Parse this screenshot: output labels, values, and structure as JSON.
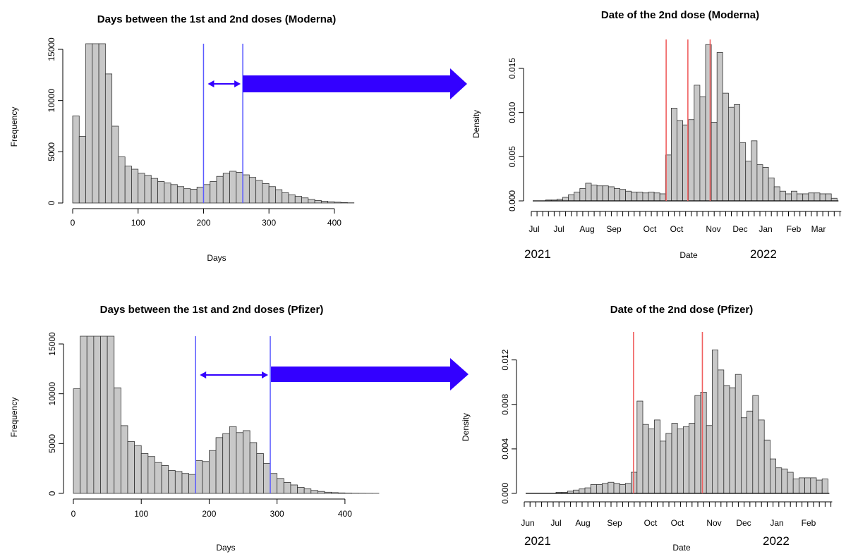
{
  "figure": {
    "arrow_color": "#3300ff",
    "bar_fill": "#c8c8c8",
    "blue_line_color": "#5a5aff",
    "red_line_color": "#f06060"
  },
  "chart_data": [
    {
      "type": "bar",
      "title": "Days between the 1st and 2nd doses (Moderna)",
      "xlabel": "Days",
      "ylabel": "Frequency",
      "xlim": [
        0,
        440
      ],
      "ylim": [
        0,
        15000
      ],
      "x_ticks": [
        0,
        100,
        200,
        300,
        400
      ],
      "y_ticks": [
        0,
        5000,
        10000,
        15000
      ],
      "bin_width": 10,
      "values": [
        8500,
        6500,
        17000,
        17000,
        17000,
        12600,
        7500,
        4500,
        3600,
        3300,
        2900,
        2700,
        2400,
        2100,
        1950,
        1800,
        1600,
        1400,
        1350,
        1550,
        1800,
        2100,
        2600,
        2900,
        3100,
        3000,
        2750,
        2500,
        2200,
        1900,
        1600,
        1300,
        1000,
        800,
        650,
        500,
        350,
        250,
        180,
        120,
        80,
        40,
        20
      ],
      "vlines": [
        200,
        260
      ],
      "interval_arrow": [
        200,
        260
      ]
    },
    {
      "type": "bar",
      "title": "Date of the 2nd dose (Moderna)",
      "xlabel": "Date",
      "ylabel": "Density",
      "ylim": [
        0,
        0.017
      ],
      "y_ticks": [
        "0.000",
        "0.005",
        "0.010",
        "0.015"
      ],
      "x_month_labels": [
        "Jul",
        "Jul",
        "Aug",
        "Sep",
        "Oct",
        "Oct",
        "Nov",
        "Dec",
        "Jan",
        "Feb",
        "Mar"
      ],
      "year_labels": [
        "2021",
        "2022"
      ],
      "bin": "week",
      "values": [
        0.0,
        0.0,
        0.0001,
        0.0001,
        0.0002,
        0.0004,
        0.0007,
        0.001,
        0.0014,
        0.002,
        0.0018,
        0.0017,
        0.0017,
        0.0016,
        0.0014,
        0.0013,
        0.0011,
        0.001,
        0.001,
        0.0009,
        0.001,
        0.0009,
        0.0008,
        0.0052,
        0.0105,
        0.0091,
        0.0086,
        0.0092,
        0.0131,
        0.0118,
        0.0177,
        0.0089,
        0.0168,
        0.0122,
        0.0106,
        0.0109,
        0.0066,
        0.0045,
        0.0068,
        0.0041,
        0.0038,
        0.0026,
        0.0016,
        0.0011,
        0.0008,
        0.0011,
        0.0008,
        0.0008,
        0.0009,
        0.0009,
        0.0008,
        0.0008,
        0.0003
      ],
      "vlines_week_index": [
        23.1,
        26.9,
        30.8
      ]
    },
    {
      "type": "bar",
      "title": "Days between the 1st and 2nd doses (Pfizer)",
      "xlabel": "Days",
      "ylabel": "Frequency",
      "xlim": [
        0,
        450
      ],
      "ylim": [
        0,
        15000
      ],
      "x_ticks": [
        0,
        100,
        200,
        300,
        400
      ],
      "y_ticks": [
        0,
        5000,
        10000,
        15000
      ],
      "bin_width": 10,
      "values": [
        10500,
        17000,
        17000,
        17000,
        17000,
        17000,
        10600,
        6800,
        5200,
        4800,
        4000,
        3700,
        3100,
        2800,
        2300,
        2200,
        2000,
        1900,
        3300,
        3200,
        4300,
        5600,
        6000,
        6700,
        6100,
        6300,
        5100,
        4000,
        3000,
        2000,
        1500,
        1100,
        850,
        600,
        450,
        300,
        200,
        120,
        80,
        50,
        30,
        15,
        10,
        5,
        2
      ],
      "vlines": [
        180,
        290
      ],
      "interval_arrow": [
        180,
        290
      ]
    },
    {
      "type": "bar",
      "title": "Date of the 2nd dose (Pfizer)",
      "xlabel": "Date",
      "ylabel": "Density",
      "ylim": [
        0,
        0.0135
      ],
      "y_ticks": [
        "0.000",
        "0.004",
        "0.008",
        "0.012"
      ],
      "x_month_labels": [
        "Jun",
        "Jul",
        "Aug",
        "Sep",
        "Oct",
        "Oct",
        "Nov",
        "Dec",
        "Jan",
        "Feb"
      ],
      "year_labels": [
        "2021",
        "2022"
      ],
      "bin": "week",
      "values": [
        0.0,
        0.0,
        0.0,
        0.0,
        0.0,
        0.0001,
        0.0001,
        0.0002,
        0.0003,
        0.0004,
        0.0005,
        0.0008,
        0.0008,
        0.0009,
        0.001,
        0.0009,
        0.0008,
        0.0009,
        0.0019,
        0.0083,
        0.0062,
        0.0058,
        0.0066,
        0.0047,
        0.0054,
        0.0063,
        0.0058,
        0.006,
        0.0063,
        0.0088,
        0.0091,
        0.0061,
        0.0129,
        0.0111,
        0.0097,
        0.0095,
        0.0107,
        0.0068,
        0.0074,
        0.0088,
        0.0066,
        0.0048,
        0.0031,
        0.0023,
        0.0022,
        0.0019,
        0.0013,
        0.0014,
        0.0014,
        0.0014,
        0.0012,
        0.0013
      ],
      "vlines_week_index": [
        18.4,
        30.3
      ]
    }
  ]
}
